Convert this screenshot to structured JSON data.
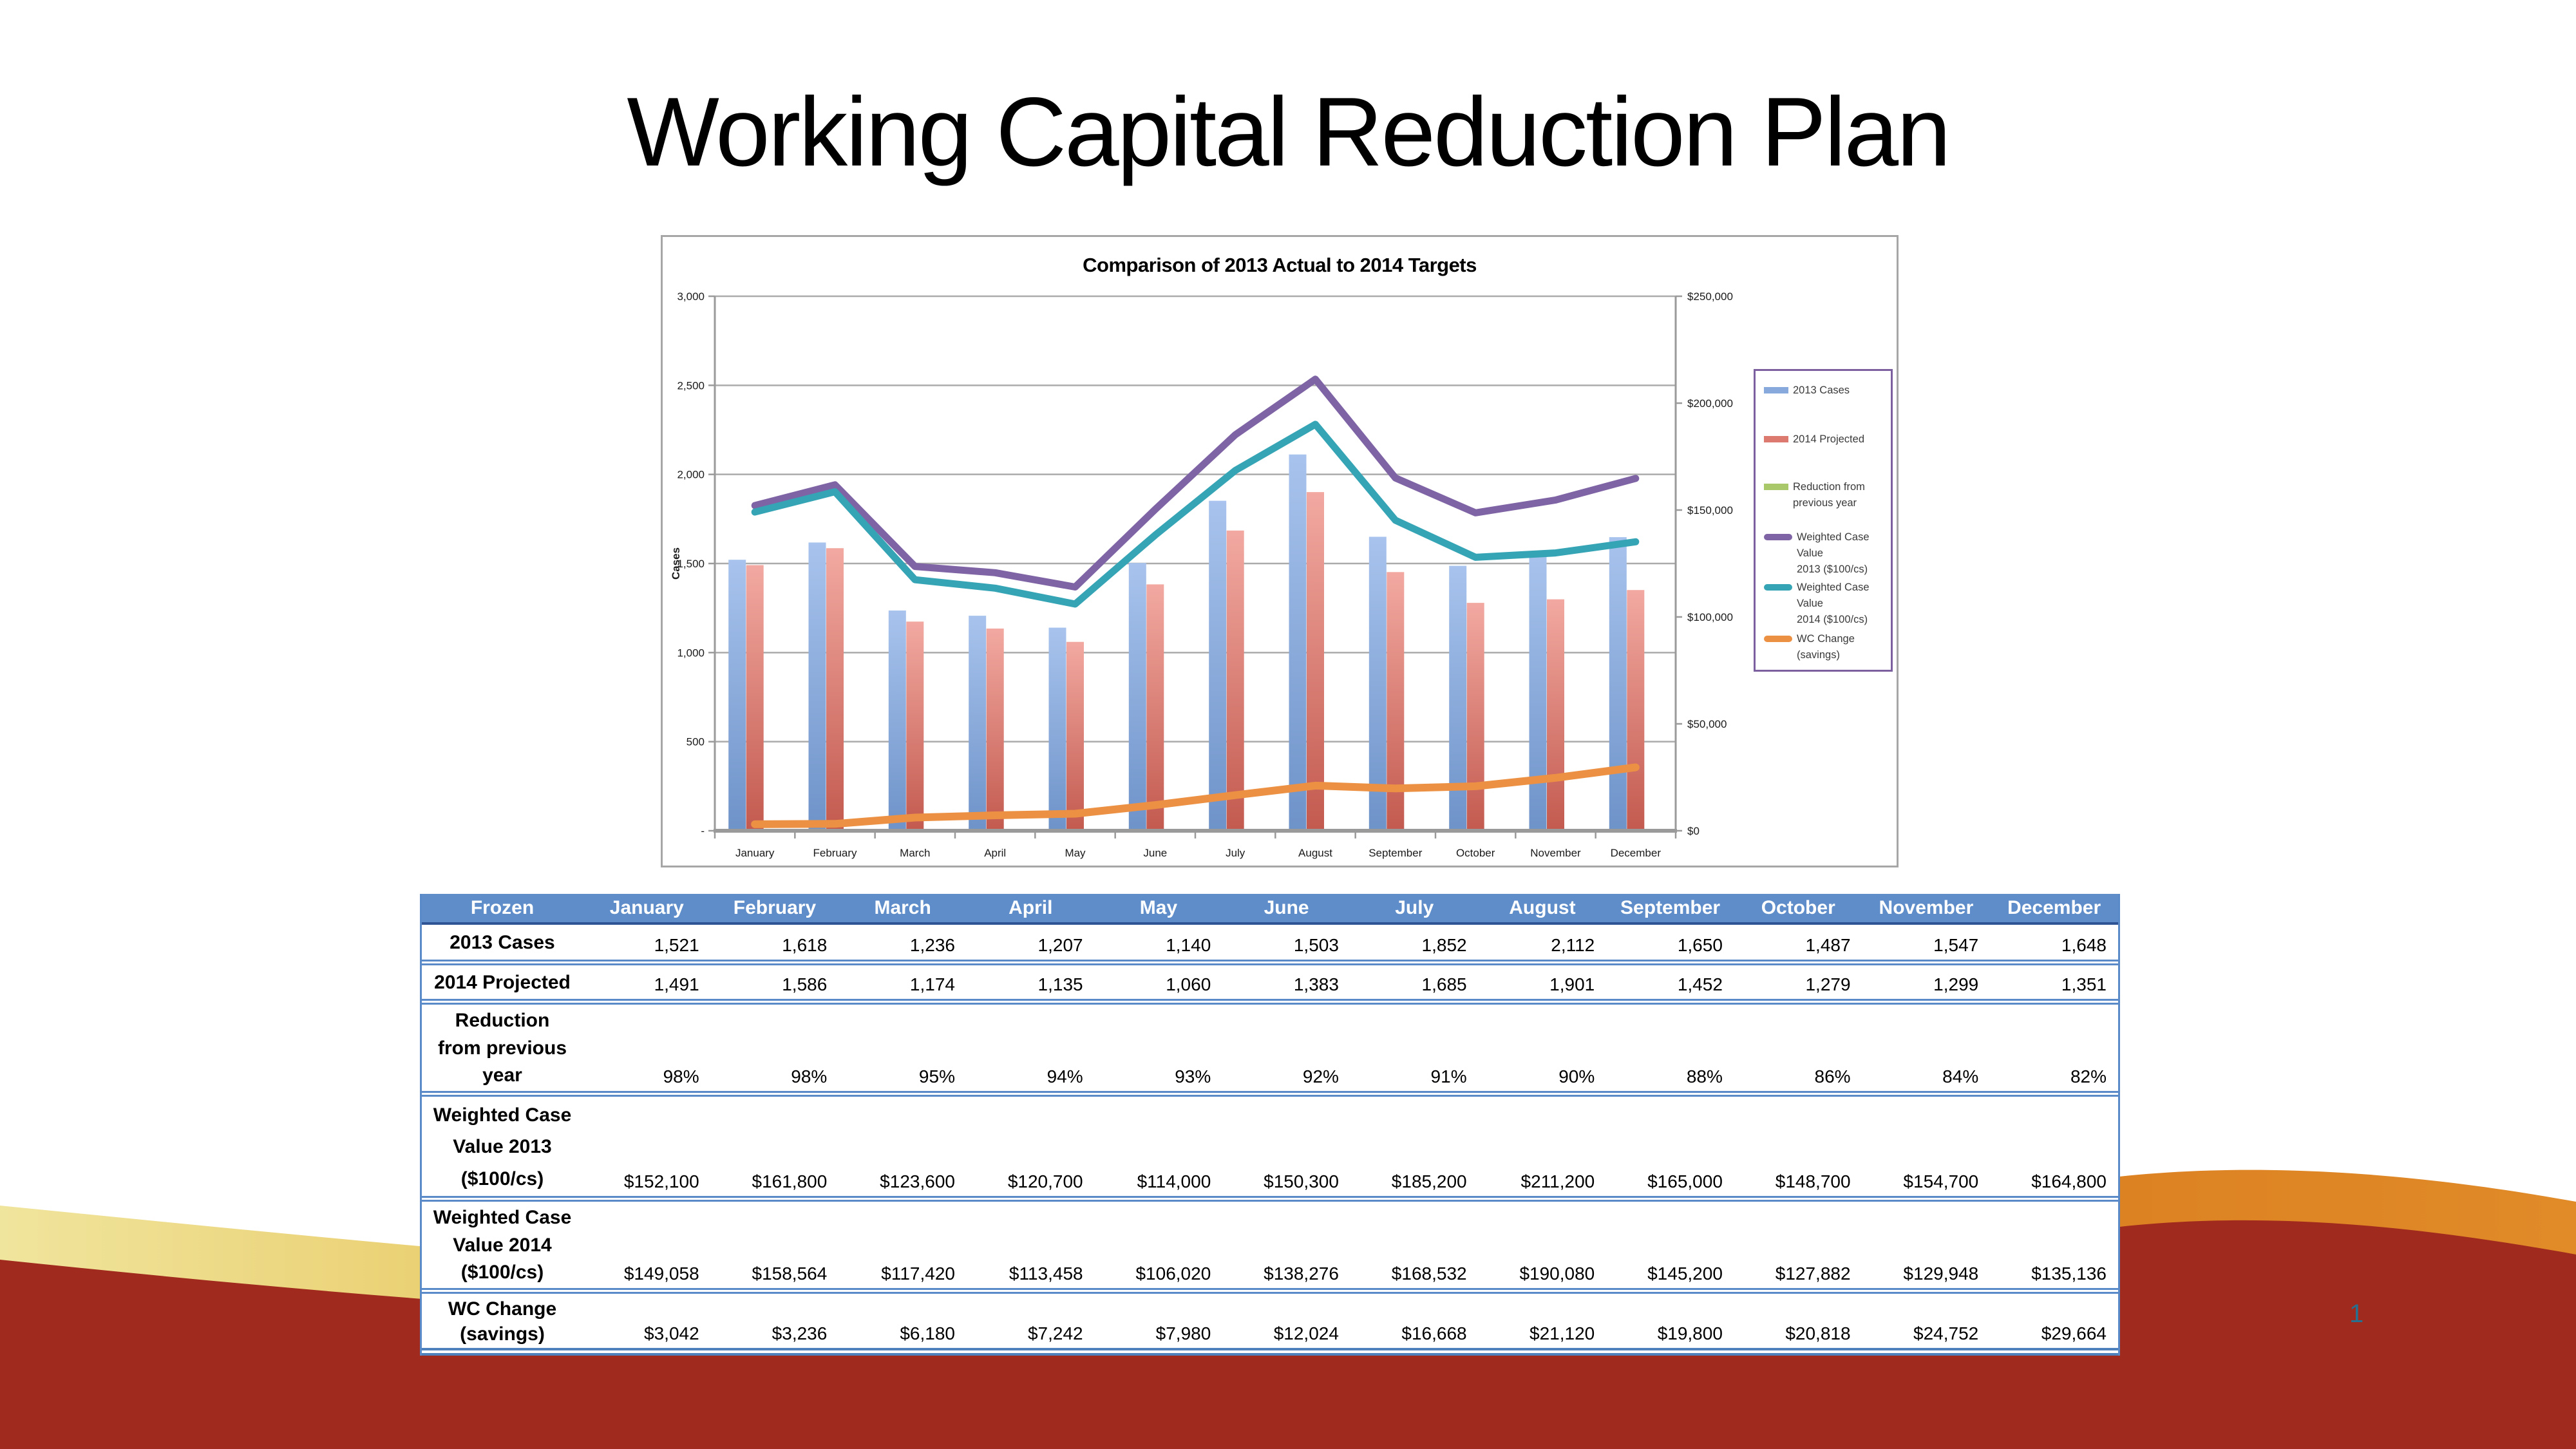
{
  "slide": {
    "title": "Working Capital Reduction Plan",
    "page_number": "1",
    "colors": {
      "maroon": "#A02A1D",
      "gold_stops": [
        "#F0E59D",
        "#E9CC6B",
        "#E3AC40",
        "#E0942F",
        "#DC8122",
        "#E08A28"
      ],
      "page_number_color": "#27708F",
      "chart_border": "#A6A6A6",
      "legend_border": "#7D60A0",
      "gridline": "#ABABAB",
      "axis_line": "#9A9A9A",
      "bar_2013_top": "#A8C3ED",
      "bar_2013_bottom": "#6E93C9",
      "bar_2014_top": "#F2A9A1",
      "bar_2014_bottom": "#C35A4F",
      "table_border_blue": "#5B8AC8",
      "table_header_bg": "#5E8DC9",
      "table_header_underline": "#2F5496"
    }
  },
  "chart_data": {
    "type": "combo bar+line, dual axis",
    "title": "Comparison of 2013 Actual to 2014 Targets",
    "categories": [
      "January",
      "February",
      "March",
      "April",
      "May",
      "June",
      "July",
      "August",
      "September",
      "October",
      "November",
      "December"
    ],
    "left_axis": {
      "title": "Cases",
      "min": 0,
      "max": 3000,
      "step": 500,
      "tick_labels": [
        "-",
        "500",
        "1,000",
        "1,500",
        "2,000",
        "2,500",
        "3,000"
      ]
    },
    "right_axis": {
      "min": 0,
      "max": 250000,
      "step": 50000,
      "tick_labels": [
        "$0",
        "$50,000",
        "$100,000",
        "$150,000",
        "$200,000",
        "$250,000"
      ]
    },
    "grid": true,
    "legend_position": "right",
    "series": [
      {
        "name": "2013 Cases",
        "type": "bar",
        "axis": "left",
        "color": "#88A9DC",
        "legend_lines": [
          "2013 Cases"
        ],
        "values": [
          1521,
          1618,
          1236,
          1207,
          1140,
          1503,
          1852,
          2112,
          1650,
          1487,
          1547,
          1648
        ]
      },
      {
        "name": "2014 Projected",
        "type": "bar",
        "axis": "left",
        "color": "#DC7A70",
        "legend_lines": [
          "2014 Projected"
        ],
        "values": [
          1491,
          1586,
          1174,
          1135,
          1060,
          1383,
          1685,
          1901,
          1452,
          1279,
          1299,
          1351
        ]
      },
      {
        "name": "Reduction from previous year",
        "type": "bar",
        "axis": "left",
        "color": "#A9C86A",
        "legend_lines": [
          "Reduction from",
          "previous year"
        ],
        "unit": "%",
        "values": [
          98,
          98,
          95,
          94,
          93,
          92,
          91,
          90,
          88,
          86,
          84,
          82
        ],
        "note": "plotted near zero on Cases axis, not visible"
      },
      {
        "name": "Weighted Case Value 2013 ($100/cs)",
        "type": "line",
        "axis": "right",
        "color": "#7E63A5",
        "legend_lines": [
          "Weighted Case Value",
          "2013 ($100/cs)"
        ],
        "values": [
          152100,
          161800,
          123600,
          120700,
          114000,
          150300,
          185200,
          211200,
          165000,
          148700,
          154700,
          164800
        ]
      },
      {
        "name": "Weighted Case Value 2014 ($100/cs)",
        "type": "line",
        "axis": "right",
        "color": "#35A4B5",
        "legend_lines": [
          "Weighted Case Value",
          "2014 ($100/cs)"
        ],
        "values": [
          149058,
          158564,
          117420,
          113458,
          106020,
          138276,
          168532,
          190080,
          145200,
          127882,
          129948,
          135136
        ]
      },
      {
        "name": "WC Change (savings)",
        "type": "line",
        "axis": "right",
        "color": "#EC9143",
        "legend_lines": [
          "WC Change (savings)"
        ],
        "values": [
          3042,
          3236,
          6180,
          7242,
          7980,
          12024,
          16668,
          21120,
          19800,
          20818,
          24752,
          29664
        ]
      }
    ]
  },
  "table": {
    "header": [
      "Frozen",
      "January",
      "February",
      "March",
      "April",
      "May",
      "June",
      "July",
      "August",
      "September",
      "October",
      "November",
      "December"
    ],
    "rows": [
      {
        "label": "2013 Cases",
        "label_lines": [
          "2013 Cases"
        ],
        "values": [
          "1,521",
          "1,618",
          "1,236",
          "1,207",
          "1,140",
          "1,503",
          "1,852",
          "2,112",
          "1,650",
          "1,487",
          "1,547",
          "1,648"
        ]
      },
      {
        "label": "2014 Projected",
        "label_lines": [
          "2014 Projected"
        ],
        "values": [
          "1,491",
          "1,586",
          "1,174",
          "1,135",
          "1,060",
          "1,383",
          "1,685",
          "1,901",
          "1,452",
          "1,279",
          "1,299",
          "1,351"
        ]
      },
      {
        "label": "Reduction from previous year",
        "label_lines": [
          "Reduction",
          "from previous",
          "year"
        ],
        "values": [
          "98%",
          "98%",
          "95%",
          "94%",
          "93%",
          "92%",
          "91%",
          "90%",
          "88%",
          "86%",
          "84%",
          "82%"
        ]
      },
      {
        "label": "Weighted Case Value 2013 ($100/cs)",
        "label_lines": [
          "Weighted Case",
          "Value 2013",
          "($100/cs)"
        ],
        "values": [
          "$152,100",
          "$161,800",
          "$123,600",
          "$120,700",
          "$114,000",
          "$150,300",
          "$185,200",
          "$211,200",
          "$165,000",
          "$148,700",
          "$154,700",
          "$164,800"
        ]
      },
      {
        "label": "Weighted Case Value 2014 ($100/cs)",
        "label_lines": [
          "Weighted Case",
          "Value 2014",
          "($100/cs)"
        ],
        "values": [
          "$149,058",
          "$158,564",
          "$117,420",
          "$113,458",
          "$106,020",
          "$138,276",
          "$168,532",
          "$190,080",
          "$145,200",
          "$127,882",
          "$129,948",
          "$135,136"
        ]
      },
      {
        "label": "WC Change (savings)",
        "label_lines": [
          "WC Change",
          "(savings)"
        ],
        "values": [
          "$3,042",
          "$3,236",
          "$6,180",
          "$7,242",
          "$7,980",
          "$12,024",
          "$16,668",
          "$21,120",
          "$19,800",
          "$20,818",
          "$24,752",
          "$29,664"
        ]
      }
    ]
  }
}
